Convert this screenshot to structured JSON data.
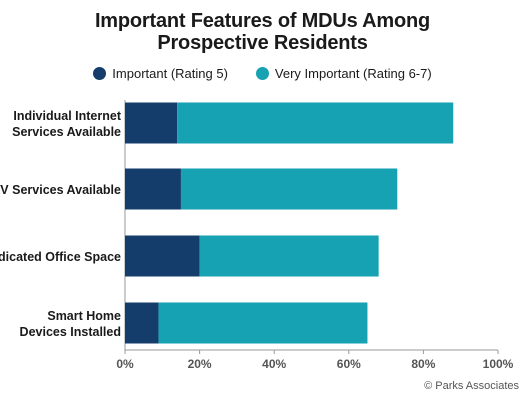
{
  "chart_data": {
    "type": "bar",
    "orientation": "horizontal",
    "stacked": true,
    "title": [
      "Important Features of MDUs Among",
      "Prospective Residents"
    ],
    "categories": [
      [
        "Individual Internet",
        "Services Available"
      ],
      [
        "TV Services Available"
      ],
      [
        "Dedicated Office Space"
      ],
      [
        "Smart Home",
        "Devices Installed"
      ]
    ],
    "series": [
      {
        "name": "Important (Rating 5)",
        "color": "#143d6b",
        "values": [
          14,
          15,
          20,
          9
        ]
      },
      {
        "name": "Very Important (Rating 6-7)",
        "color": "#17a2b3",
        "values": [
          74,
          58,
          48,
          56
        ]
      }
    ],
    "xlim": [
      0,
      100
    ],
    "xticks": [
      "0%",
      "20%",
      "40%",
      "60%",
      "80%",
      "100%"
    ],
    "grid": false,
    "legend_position": "top"
  },
  "source": "© Parks Associates"
}
